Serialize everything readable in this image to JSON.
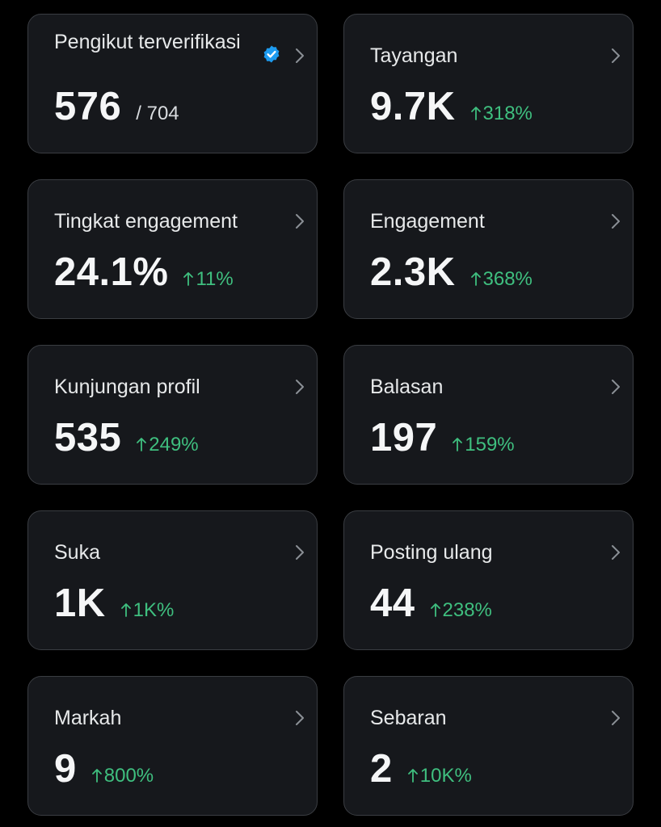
{
  "metrics": [
    {
      "label": "Pengikut terverifikasi",
      "value": "576",
      "sub": "/ 704",
      "verified": true,
      "icon": "verified-badge-icon",
      "accent": "#1d9bf0"
    },
    {
      "label": "Tayangan",
      "value": "9.7K",
      "change": "318%"
    },
    {
      "label": "Tingkat engagement",
      "value": "24.1%",
      "change": "11%"
    },
    {
      "label": "Engagement",
      "value": "2.3K",
      "change": "368%"
    },
    {
      "label": "Kunjungan profil",
      "value": "535",
      "change": "249%"
    },
    {
      "label": "Balasan",
      "value": "197",
      "change": "159%"
    },
    {
      "label": "Suka",
      "value": "1K",
      "change": "1K%"
    },
    {
      "label": "Posting ulang",
      "value": "44",
      "change": "238%"
    },
    {
      "label": "Markah",
      "value": "9",
      "change": "800%"
    },
    {
      "label": "Sebaran",
      "value": "2",
      "change": "10K%"
    }
  ],
  "colors": {
    "background": "#000000",
    "card": "#16181c",
    "border": "#3a3d42",
    "positive": "#3fbf7f",
    "text": "#e7e9ea"
  },
  "icons": {
    "chevron": "chevron-right-icon",
    "arrow": "arrow-up-icon"
  }
}
